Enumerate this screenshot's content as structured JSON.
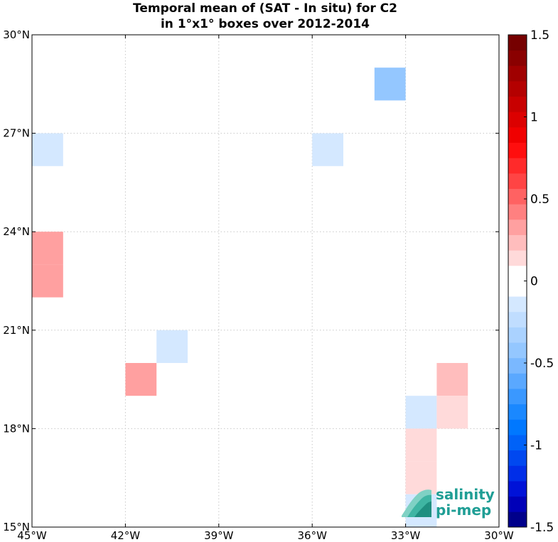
{
  "chart_data": {
    "type": "heatmap",
    "title": "Temporal mean of (SAT - In situ) for C2",
    "subtitle": "in 1°x1° boxes over 2012-2014",
    "xlim": [
      -45,
      -30
    ],
    "ylim": [
      15,
      30
    ],
    "x_ticks": [
      -45,
      -42,
      -39,
      -36,
      -33,
      -30
    ],
    "x_tick_labels": [
      "45°W",
      "42°W",
      "39°W",
      "36°W",
      "33°W",
      "30°W"
    ],
    "y_ticks": [
      30,
      27,
      24,
      21,
      18,
      15
    ],
    "y_tick_labels": [
      "30°N",
      "27°N",
      "24°N",
      "21°N",
      "18°N",
      "15°N"
    ],
    "grid": true,
    "colorbar": {
      "range": [
        -1.5,
        1.5
      ],
      "levels": 32,
      "placement": "right",
      "ticks": [
        1.5,
        1,
        0.5,
        0,
        -0.5,
        -1,
        -1.5
      ],
      "tick_labels": [
        "1.5",
        "1",
        "0.5",
        "0",
        "-0.5",
        "-1",
        "-1.5"
      ],
      "colors_low_to_high": [
        "#00008b",
        "#0000b8",
        "#0012d8",
        "#002ee8",
        "#0048f0",
        "#0062f8",
        "#0078ff",
        "#1a88ff",
        "#3a98ff",
        "#5aa8ff",
        "#7ab8ff",
        "#94c7ff",
        "#aad2ff",
        "#c0ddff",
        "#d4e8ff",
        "#ffffff",
        "#ffffff",
        "#ffdada",
        "#ffbdbd",
        "#ffa0a0",
        "#ff8080",
        "#ff6262",
        "#ff4444",
        "#ff2a2a",
        "#ff0e0e",
        "#f00000",
        "#dc0000",
        "#c80000",
        "#b40000",
        "#a00000",
        "#8a0000",
        "#760000"
      ]
    },
    "cells": [
      {
        "lon": -34,
        "lat": 28,
        "value": -0.45
      },
      {
        "lon": -45,
        "lat": 26,
        "value": -0.1
      },
      {
        "lon": -36,
        "lat": 26,
        "value": -0.1
      },
      {
        "lon": -45,
        "lat": 23,
        "value": 0.3
      },
      {
        "lon": -45,
        "lat": 22,
        "value": 0.3
      },
      {
        "lon": -41,
        "lat": 20,
        "value": -0.1
      },
      {
        "lon": -42,
        "lat": 19,
        "value": 0.3
      },
      {
        "lon": -32,
        "lat": 19,
        "value": 0.2
      },
      {
        "lon": -33,
        "lat": 18,
        "value": -0.1
      },
      {
        "lon": -32,
        "lat": 18,
        "value": 0.15
      },
      {
        "lon": -33,
        "lat": 17,
        "value": 0.12
      },
      {
        "lon": -33,
        "lat": 16,
        "value": 0.12
      },
      {
        "lon": -33,
        "lat": 15,
        "value": -0.1
      }
    ]
  },
  "logo": {
    "line1": "salinity",
    "line2": "pi-mep"
  }
}
